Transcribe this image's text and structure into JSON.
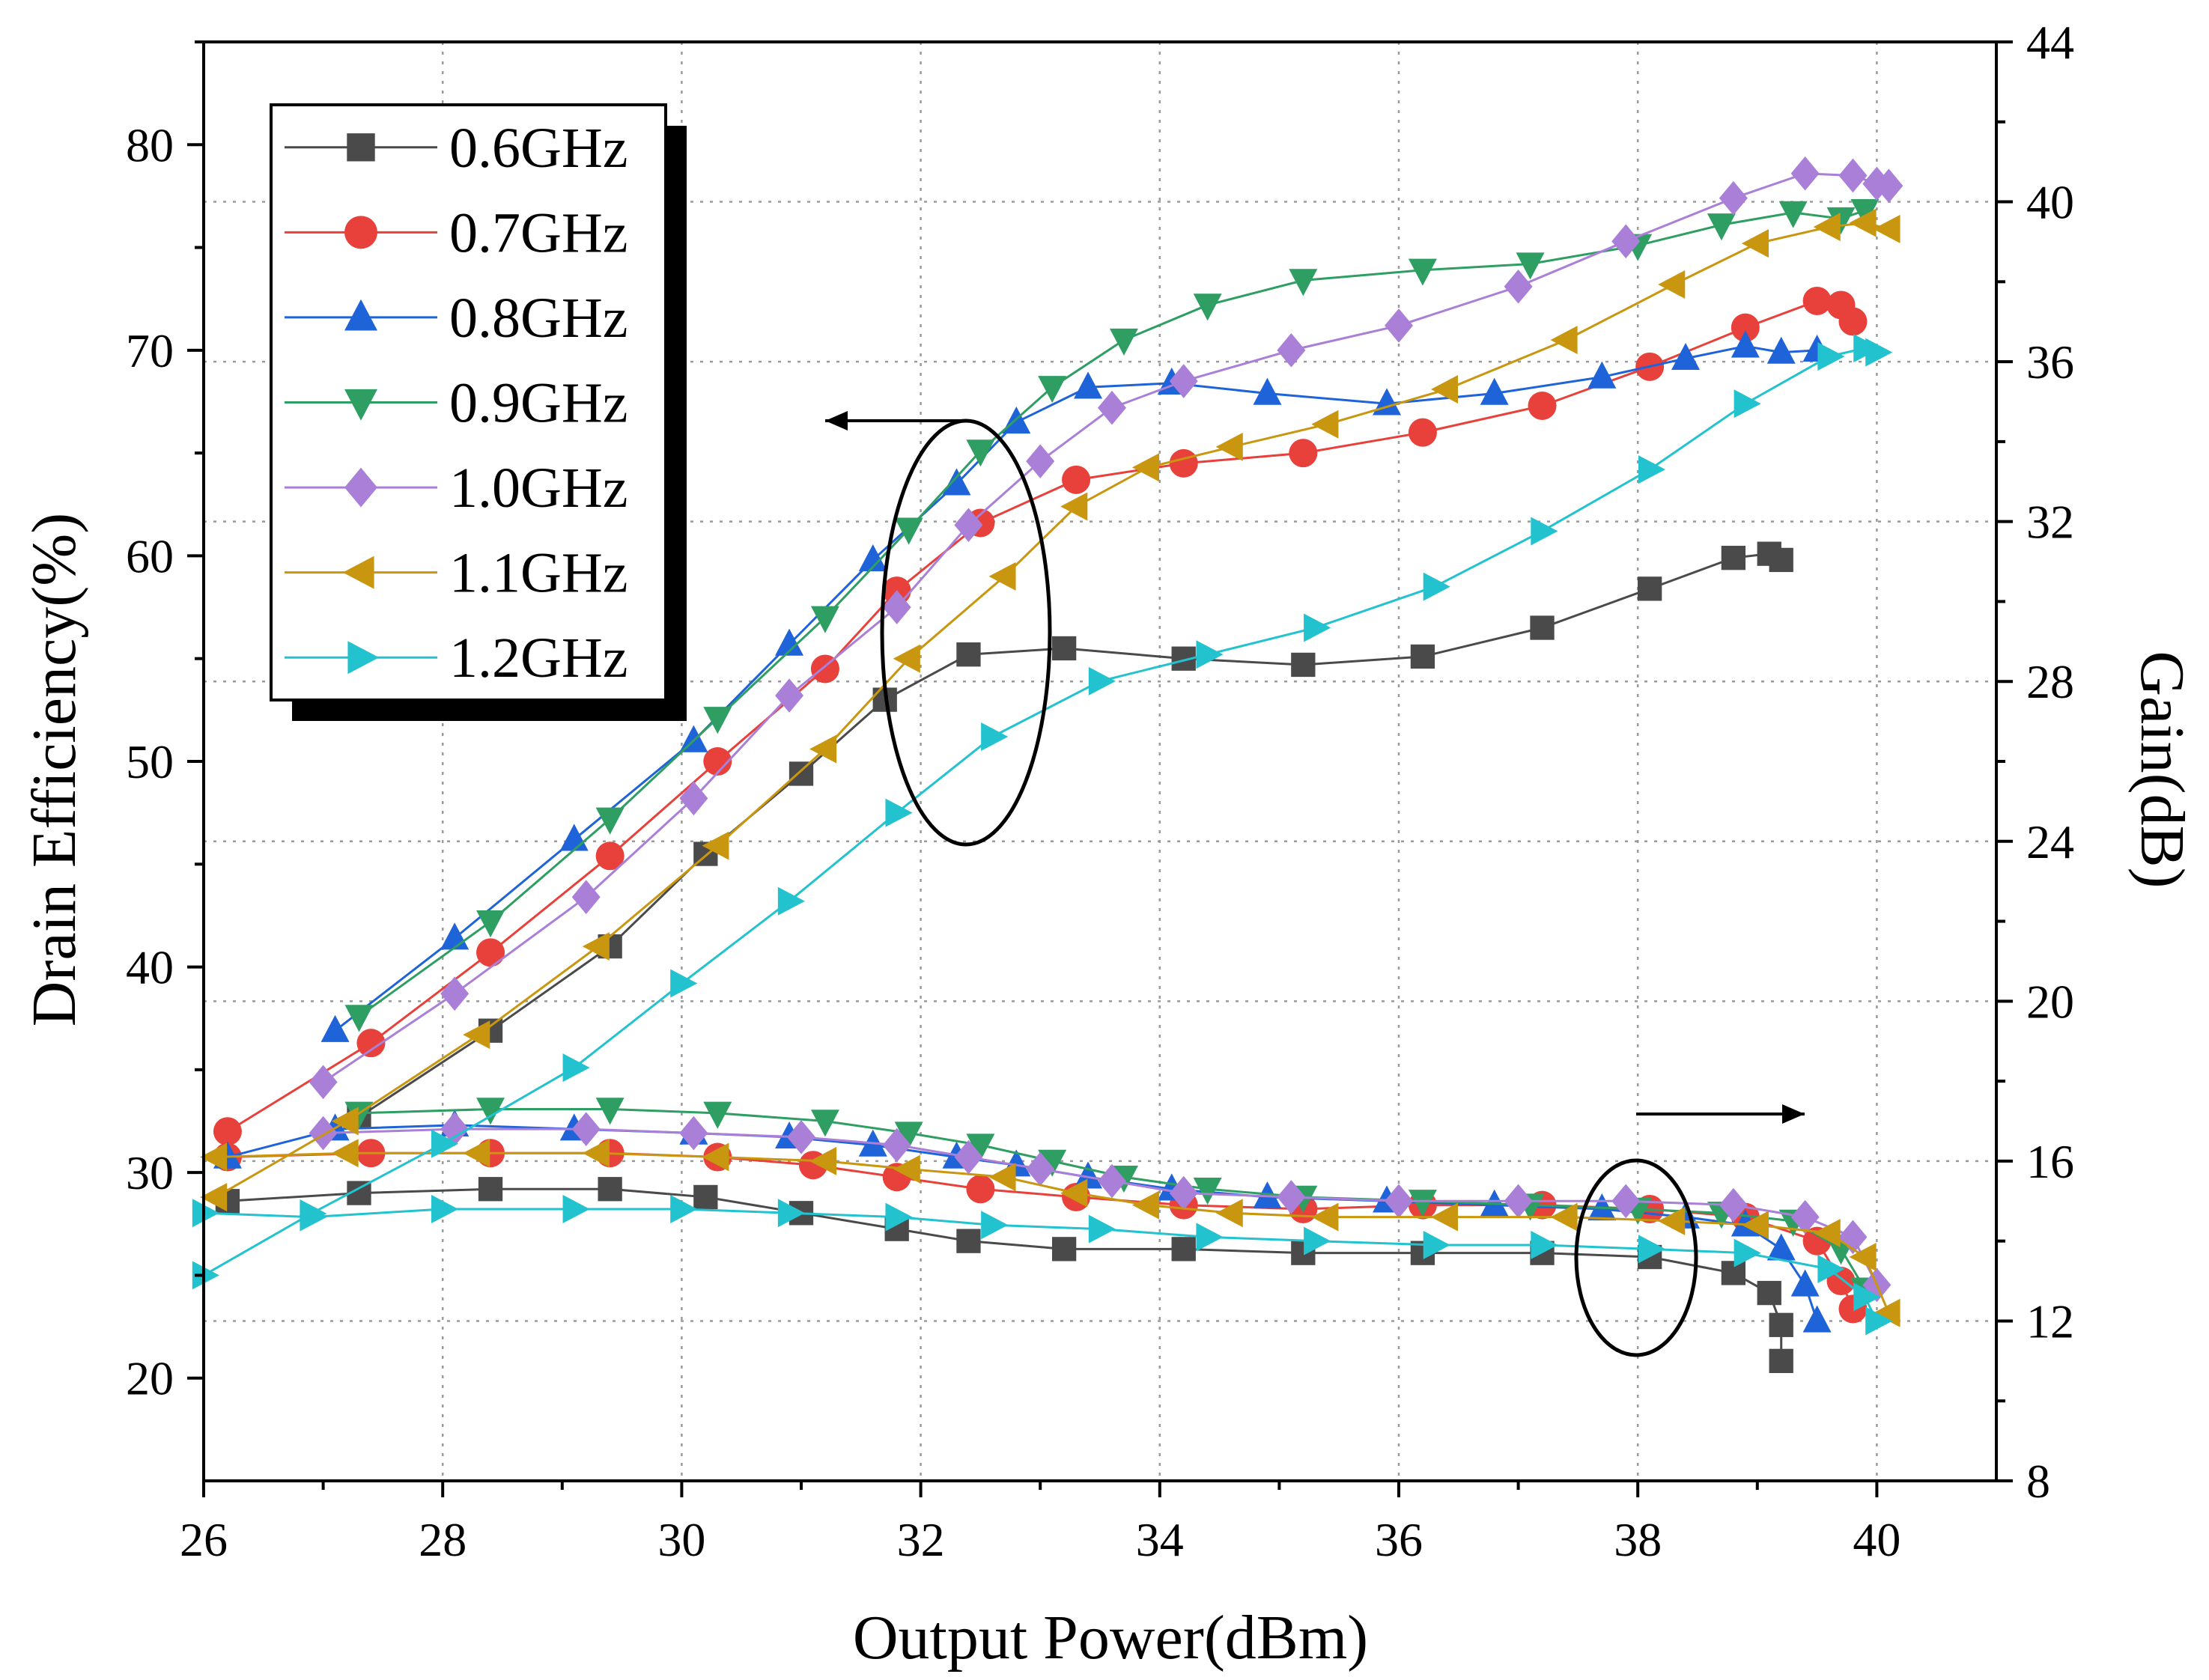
{
  "chart_data": {
    "type": "line",
    "title": "",
    "xlabel": "Output Power(dBm)",
    "ylabel": "Drain Efficiency(%)",
    "y2label": "Gain(dB)",
    "xlim": [
      26,
      41
    ],
    "ylim": [
      15,
      85
    ],
    "y2lim": [
      8,
      44
    ],
    "xticks": [
      26,
      28,
      30,
      32,
      34,
      36,
      38,
      40
    ],
    "yticks": [
      20,
      30,
      40,
      50,
      60,
      70,
      80
    ],
    "y2ticks": [
      8,
      12,
      16,
      20,
      24,
      28,
      32,
      36,
      40,
      44
    ],
    "grid": true,
    "legend_position": "top-left",
    "annotations": [
      {
        "type": "ellipse-arrow",
        "group": "efficiency curves",
        "arrow_direction": "left",
        "indicates_axis": "left"
      },
      {
        "type": "ellipse-arrow",
        "group": "gain curves",
        "arrow_direction": "right",
        "indicates_axis": "right"
      }
    ],
    "series": [
      {
        "name": "0.6GHz",
        "color": "#4a4a4a",
        "marker": "square",
        "efficiency": {
          "x": [
            27.3,
            28.4,
            29.4,
            30.2,
            31.0,
            31.7,
            32.4,
            33.2,
            34.2,
            35.2,
            36.2,
            37.2,
            38.1,
            38.8,
            39.1,
            39.2
          ],
          "y": [
            32.7,
            36.9,
            41.0,
            45.5,
            49.4,
            53.0,
            55.2,
            55.5,
            55.0,
            54.7,
            55.1,
            56.5,
            58.4,
            59.9,
            60.1,
            59.8
          ]
        },
        "gain": {
          "x": [
            26.2,
            27.3,
            28.4,
            29.4,
            30.2,
            31.0,
            31.8,
            32.4,
            33.2,
            34.2,
            35.2,
            36.2,
            37.2,
            38.1,
            38.8,
            39.1,
            39.2,
            39.2
          ],
          "y": [
            15.0,
            15.2,
            15.3,
            15.3,
            15.1,
            14.7,
            14.3,
            14.0,
            13.8,
            13.8,
            13.7,
            13.7,
            13.7,
            13.6,
            13.2,
            12.7,
            11.9,
            11.0
          ]
        }
      },
      {
        "name": "0.7GHz",
        "color": "#e8403a",
        "marker": "circle",
        "efficiency": {
          "x": [
            26.2,
            27.4,
            28.4,
            29.4,
            30.3,
            31.2,
            31.8,
            32.5,
            33.3,
            34.2,
            35.2,
            36.2,
            37.2,
            38.1,
            38.9,
            39.5,
            39.7,
            39.8
          ],
          "y": [
            32.0,
            36.3,
            40.7,
            45.4,
            50.0,
            54.5,
            58.3,
            61.6,
            63.7,
            64.5,
            65.0,
            66.0,
            67.3,
            69.2,
            71.1,
            72.4,
            72.2,
            71.4
          ]
        },
        "gain": {
          "x": [
            26.2,
            27.4,
            28.4,
            29.4,
            30.3,
            31.1,
            31.8,
            32.5,
            33.3,
            34.2,
            35.2,
            36.2,
            37.2,
            38.1,
            38.9,
            39.5,
            39.7,
            39.8
          ],
          "y": [
            16.1,
            16.2,
            16.2,
            16.2,
            16.1,
            15.9,
            15.6,
            15.3,
            15.1,
            14.9,
            14.8,
            14.9,
            14.9,
            14.8,
            14.6,
            14.0,
            13.0,
            12.3
          ]
        }
      },
      {
        "name": "0.8GHz",
        "color": "#1f63d8",
        "marker": "triangle-up",
        "efficiency": {
          "x": [
            27.1,
            28.1,
            29.1,
            30.1,
            30.9,
            31.6,
            32.3,
            32.8,
            33.4,
            34.1,
            34.9,
            35.9,
            36.8,
            37.7,
            38.4,
            38.9,
            39.2,
            39.5
          ],
          "y": [
            36.9,
            41.4,
            46.2,
            51.0,
            55.7,
            59.8,
            63.5,
            66.5,
            68.2,
            68.4,
            67.9,
            67.4,
            67.9,
            68.7,
            69.6,
            70.2,
            69.9,
            70.0
          ]
        },
        "gain": {
          "x": [
            26.2,
            27.1,
            28.1,
            29.1,
            30.1,
            30.9,
            31.6,
            32.3,
            32.8,
            33.4,
            34.1,
            34.9,
            35.9,
            36.8,
            37.7,
            38.4,
            38.9,
            39.2,
            39.4,
            39.5
          ],
          "y": [
            16.1,
            16.8,
            16.9,
            16.8,
            16.7,
            16.6,
            16.4,
            16.1,
            15.9,
            15.6,
            15.3,
            15.1,
            15.0,
            14.9,
            14.8,
            14.6,
            14.4,
            13.8,
            12.9,
            12.0
          ]
        }
      },
      {
        "name": "0.9GHz",
        "color": "#2e9e63",
        "marker": "triangle-down",
        "efficiency": {
          "x": [
            27.3,
            28.4,
            29.4,
            30.3,
            31.2,
            31.9,
            32.5,
            33.1,
            33.7,
            34.4,
            35.2,
            36.2,
            37.1,
            38.0,
            38.7,
            39.3,
            39.7,
            39.9
          ],
          "y": [
            37.6,
            42.2,
            47.2,
            52.1,
            57.0,
            61.3,
            65.1,
            68.2,
            70.5,
            72.2,
            73.4,
            73.9,
            74.2,
            75.1,
            76.1,
            76.7,
            76.4,
            76.8
          ]
        },
        "gain": {
          "x": [
            27.3,
            28.4,
            29.4,
            30.3,
            31.2,
            31.9,
            32.5,
            33.1,
            33.7,
            34.4,
            35.2,
            36.2,
            37.1,
            38.0,
            38.7,
            39.3,
            39.7,
            39.9
          ],
          "y": [
            17.2,
            17.3,
            17.3,
            17.2,
            17.0,
            16.7,
            16.4,
            16.0,
            15.6,
            15.3,
            15.1,
            15.0,
            14.9,
            14.8,
            14.7,
            14.5,
            13.8,
            12.8
          ]
        }
      },
      {
        "name": "1.0GHz",
        "color": "#a97fd8",
        "marker": "diamond",
        "efficiency": {
          "x": [
            27.0,
            28.1,
            29.2,
            30.1,
            30.9,
            31.8,
            32.4,
            33.0,
            33.6,
            34.2,
            35.1,
            36.0,
            37.0,
            37.9,
            38.8,
            39.4,
            39.8,
            40.0,
            40.1
          ],
          "y": [
            34.4,
            38.7,
            43.4,
            48.2,
            53.2,
            57.5,
            61.5,
            64.6,
            67.2,
            68.5,
            70.0,
            71.2,
            73.1,
            75.3,
            77.4,
            78.6,
            78.5,
            78.1,
            78.0
          ]
        },
        "gain": {
          "x": [
            27.0,
            28.1,
            29.2,
            30.1,
            31.0,
            31.8,
            32.4,
            33.0,
            33.6,
            34.2,
            35.1,
            36.0,
            37.0,
            37.9,
            38.8,
            39.4,
            39.8,
            40.0
          ],
          "y": [
            16.7,
            16.8,
            16.8,
            16.7,
            16.6,
            16.4,
            16.1,
            15.8,
            15.5,
            15.2,
            15.1,
            15.0,
            15.0,
            15.0,
            14.9,
            14.6,
            14.1,
            12.9
          ]
        }
      },
      {
        "name": "1.1GHz",
        "color": "#c9960f",
        "marker": "triangle-left",
        "efficiency": {
          "x": [
            26.1,
            27.2,
            28.3,
            29.3,
            30.3,
            31.2,
            31.9,
            32.7,
            33.3,
            33.9,
            34.6,
            35.4,
            36.4,
            37.4,
            38.3,
            39.0,
            39.6,
            39.9,
            40.1
          ],
          "y": [
            28.8,
            32.5,
            36.7,
            41.0,
            45.9,
            50.6,
            55.0,
            59.0,
            62.4,
            64.3,
            65.3,
            66.4,
            68.1,
            70.5,
            73.2,
            75.2,
            76.0,
            76.2,
            75.9
          ]
        },
        "gain": {
          "x": [
            26.1,
            27.2,
            28.3,
            29.3,
            30.3,
            31.2,
            31.9,
            32.7,
            33.3,
            33.9,
            34.6,
            35.4,
            36.4,
            37.4,
            38.3,
            39.0,
            39.6,
            39.9,
            40.1
          ],
          "y": [
            16.1,
            16.2,
            16.2,
            16.2,
            16.1,
            16.0,
            15.8,
            15.6,
            15.2,
            14.9,
            14.7,
            14.6,
            14.6,
            14.6,
            14.5,
            14.4,
            14.2,
            13.6,
            12.2
          ]
        }
      },
      {
        "name": "1.2GHz",
        "color": "#22c2cf",
        "marker": "triangle-right",
        "efficiency": {
          "x": [
            26.0,
            26.9,
            28.0,
            29.1,
            30.0,
            30.9,
            31.8,
            32.6,
            33.5,
            34.4,
            35.3,
            36.3,
            37.2,
            38.1,
            38.9,
            39.6,
            39.9,
            40.0
          ],
          "y": [
            25.0,
            28.0,
            31.4,
            35.1,
            39.2,
            43.2,
            47.5,
            51.2,
            53.9,
            55.2,
            56.5,
            58.5,
            61.2,
            64.2,
            67.4,
            69.7,
            70.1,
            69.9
          ]
        },
        "gain": {
          "x": [
            26.0,
            26.9,
            28.0,
            29.1,
            30.0,
            30.9,
            31.8,
            32.6,
            33.5,
            34.4,
            35.3,
            36.3,
            37.2,
            38.1,
            38.9,
            39.6,
            39.9,
            40.0
          ],
          "y": [
            14.7,
            14.6,
            14.8,
            14.8,
            14.8,
            14.7,
            14.6,
            14.4,
            14.3,
            14.1,
            14.0,
            13.9,
            13.9,
            13.8,
            13.7,
            13.3,
            12.6,
            12.0
          ]
        }
      }
    ]
  }
}
